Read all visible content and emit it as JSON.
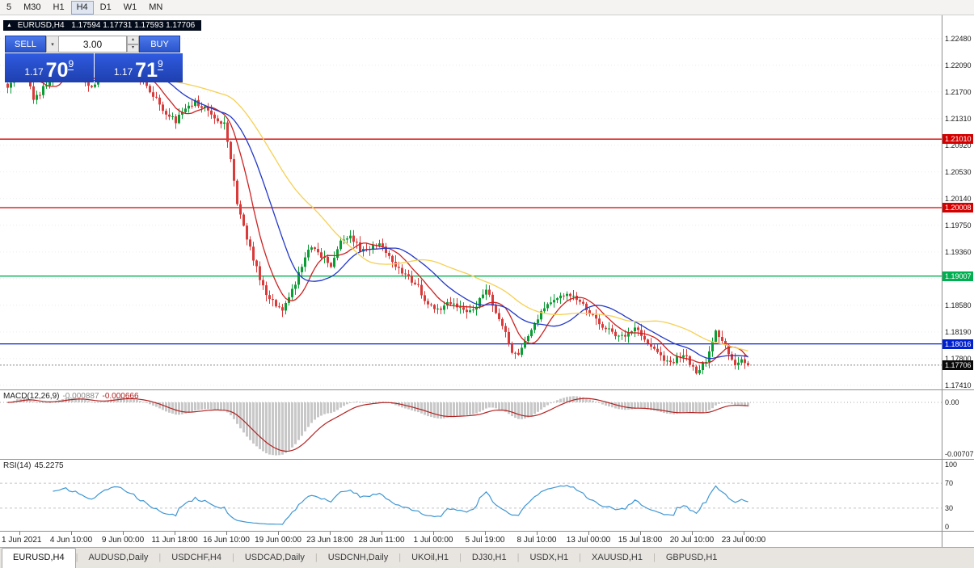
{
  "toolbar": {
    "timeframes": [
      {
        "label": "5",
        "active": false
      },
      {
        "label": "M30",
        "active": false
      },
      {
        "label": "H1",
        "active": false
      },
      {
        "label": "H4",
        "active": true
      },
      {
        "label": "D1",
        "active": false
      },
      {
        "label": "W1",
        "active": false
      },
      {
        "label": "MN",
        "active": false
      }
    ]
  },
  "chart_label": {
    "symbol": "EURUSD,H4",
    "ohlc": "1.17594 1.17731 1.17593 1.17706"
  },
  "trade_panel": {
    "sell_label": "SELL",
    "buy_label": "BUY",
    "volume": "3.00",
    "sell_price": {
      "prefix": "1.17",
      "big": "70",
      "sup": "9"
    },
    "buy_price": {
      "prefix": "1.17",
      "big": "71",
      "sup": "9"
    }
  },
  "tabs": [
    {
      "label": "EURUSD,H4",
      "active": true
    },
    {
      "label": "AUDUSD,Daily",
      "active": false
    },
    {
      "label": "USDCHF,H4",
      "active": false
    },
    {
      "label": "USDCAD,Daily",
      "active": false
    },
    {
      "label": "USDCNH,Daily",
      "active": false
    },
    {
      "label": "UKOil,H1",
      "active": false
    },
    {
      "label": "DJ30,H1",
      "active": false
    },
    {
      "label": "USDX,H1",
      "active": false
    },
    {
      "label": "XAUUSD,H1",
      "active": false
    },
    {
      "label": "GBPUSD,H1",
      "active": false
    }
  ],
  "chart_data": {
    "type": "candlestick",
    "symbol": "EURUSD",
    "timeframe": "H4",
    "n_candles": 230,
    "seed": 12,
    "noise": 0.00042,
    "wick": 0.00085,
    "up_color": "#0a9d34",
    "down_color": "#d93a3a",
    "close_anchors": [
      [
        0,
        1.2178
      ],
      [
        3,
        1.2205
      ],
      [
        6,
        1.2196
      ],
      [
        8,
        1.2158
      ],
      [
        11,
        1.2175
      ],
      [
        14,
        1.2192
      ],
      [
        18,
        1.2205
      ],
      [
        22,
        1.2194
      ],
      [
        26,
        1.2178
      ],
      [
        30,
        1.2204
      ],
      [
        34,
        1.2215
      ],
      [
        38,
        1.2202
      ],
      [
        42,
        1.2185
      ],
      [
        46,
        1.216
      ],
      [
        49,
        1.2138
      ],
      [
        52,
        1.2128
      ],
      [
        55,
        1.2148
      ],
      [
        58,
        1.2156
      ],
      [
        61,
        1.2148
      ],
      [
        64,
        1.2132
      ],
      [
        67,
        1.2125
      ],
      [
        69,
        1.2068
      ],
      [
        71,
        1.2008
      ],
      [
        73,
        1.1972
      ],
      [
        75,
        1.194
      ],
      [
        77,
        1.1912
      ],
      [
        79,
        1.1884
      ],
      [
        82,
        1.1862
      ],
      [
        85,
        1.1852
      ],
      [
        88,
        1.188
      ],
      [
        91,
        1.1914
      ],
      [
        94,
        1.1946
      ],
      [
        97,
        1.193
      ],
      [
        100,
        1.1918
      ],
      [
        103,
        1.195
      ],
      [
        106,
        1.1962
      ],
      [
        109,
        1.194
      ],
      [
        112,
        1.1942
      ],
      [
        115,
        1.195
      ],
      [
        118,
        1.1928
      ],
      [
        121,
        1.1912
      ],
      [
        124,
        1.19
      ],
      [
        127,
        1.1884
      ],
      [
        130,
        1.1858
      ],
      [
        133,
        1.185
      ],
      [
        136,
        1.1866
      ],
      [
        139,
        1.1858
      ],
      [
        142,
        1.1846
      ],
      [
        145,
        1.186
      ],
      [
        148,
        1.1882
      ],
      [
        151,
        1.185
      ],
      [
        154,
        1.1818
      ],
      [
        156,
        1.1792
      ],
      [
        158,
        1.1786
      ],
      [
        161,
        1.1812
      ],
      [
        164,
        1.184
      ],
      [
        167,
        1.1858
      ],
      [
        170,
        1.1872
      ],
      [
        173,
        1.1876
      ],
      [
        176,
        1.1866
      ],
      [
        179,
        1.1852
      ],
      [
        182,
        1.1836
      ],
      [
        185,
        1.1826
      ],
      [
        188,
        1.1816
      ],
      [
        191,
        1.1812
      ],
      [
        194,
        1.1824
      ],
      [
        197,
        1.1808
      ],
      [
        200,
        1.1792
      ],
      [
        203,
        1.178
      ],
      [
        206,
        1.1776
      ],
      [
        209,
        1.1788
      ],
      [
        211,
        1.1772
      ],
      [
        213,
        1.1757
      ],
      [
        215,
        1.177
      ],
      [
        217,
        1.1788
      ],
      [
        219,
        1.1822
      ],
      [
        221,
        1.1806
      ],
      [
        223,
        1.1786
      ],
      [
        225,
        1.1773
      ],
      [
        227,
        1.1783
      ],
      [
        229,
        1.1771
      ]
    ],
    "price_axis": {
      "min": 1.1735,
      "max": 1.2282,
      "tick_labels": [
        "1.22480",
        "1.22090",
        "1.21700",
        "1.21310",
        "1.20920",
        "1.20530",
        "1.20140",
        "1.19750",
        "1.19360",
        "1.18970",
        "1.18580",
        "1.18190",
        "1.17800",
        "1.17410"
      ]
    },
    "h_lines": [
      {
        "price": 1.2101,
        "label": "1.21010",
        "color": "#d40000"
      },
      {
        "price": 1.20008,
        "label": "1.20008",
        "color": "#d40000"
      },
      {
        "price": 1.19007,
        "label": "1.19007",
        "color": "#00b050"
      },
      {
        "price": 1.18016,
        "label": "1.18016",
        "color": "#0020d0"
      }
    ],
    "current_price": {
      "value": 1.17706,
      "label": "1.17706",
      "color": "#0a0a0a"
    },
    "moving_averages": [
      {
        "window": 9,
        "color": "#cc2222"
      },
      {
        "window": 20,
        "color": "#2238c8"
      },
      {
        "window": 42,
        "color": "#f5d053"
      }
    ],
    "macd": {
      "name": "MACD(12,26,9)",
      "values": [
        "-0.000887",
        "-0.000666"
      ],
      "fast": 12,
      "slow": 26,
      "signal_period": 9,
      "axis_labels": [
        "0.00",
        "-0.00707"
      ],
      "hist_color": "#c8c8c8",
      "signal_color": "#b22222"
    },
    "rsi": {
      "name": "RSI(14)",
      "value": "45.2275",
      "period": 14,
      "levels": [
        70,
        30
      ],
      "axis_labels": [
        "100",
        "70",
        "30",
        "0"
      ],
      "color": "#3f97d4"
    },
    "x_ticks": [
      {
        "i": 4,
        "label": "1 Jun 2021"
      },
      {
        "i": 20,
        "label": "4 Jun 10:00"
      },
      {
        "i": 36,
        "label": "9 Jun 00:00"
      },
      {
        "i": 52,
        "label": "11 Jun 18:00"
      },
      {
        "i": 68,
        "label": "16 Jun 10:00"
      },
      {
        "i": 84,
        "label": "19 Jun 00:00"
      },
      {
        "i": 100,
        "label": "23 Jun 18:00"
      },
      {
        "i": 116,
        "label": "28 Jun 11:00"
      },
      {
        "i": 132,
        "label": "1 Jul 00:00"
      },
      {
        "i": 148,
        "label": "5 Jul 19:00"
      },
      {
        "i": 164,
        "label": "8 Jul 10:00"
      },
      {
        "i": 180,
        "label": "13 Jul 00:00"
      },
      {
        "i": 196,
        "label": "15 Jul 18:00"
      },
      {
        "i": 212,
        "label": "20 Jul 10:00"
      },
      {
        "i": 228,
        "label": "23 Jul 00:00"
      }
    ]
  }
}
